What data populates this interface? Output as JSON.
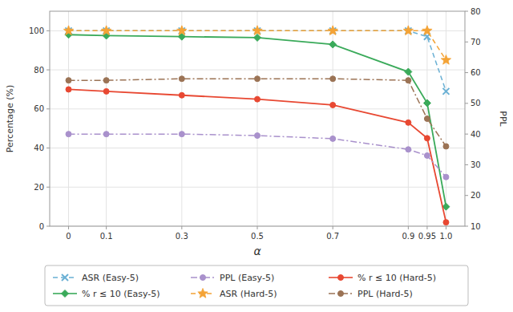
{
  "chart_data": {
    "type": "line",
    "xlabel": "α",
    "ylabel": "Percentage (%)",
    "y2label": "PPL",
    "x": [
      0,
      0.1,
      0.3,
      0.5,
      0.7,
      0.9,
      0.95,
      1.0
    ],
    "xlim": [
      -0.05,
      1.05
    ],
    "xticks": [
      0,
      0.1,
      0.3,
      0.5,
      0.7,
      0.9,
      0.95,
      {
        "value": 1.0,
        "label": "1.0"
      }
    ],
    "ylim": [
      0,
      110
    ],
    "yticks": [
      0,
      20,
      40,
      60,
      80,
      100
    ],
    "y2lim": [
      10,
      80
    ],
    "y2ticks": [
      10,
      20,
      30,
      40,
      50,
      60,
      70,
      80
    ],
    "grid": true,
    "legend": "bottom",
    "series": [
      {
        "name": "ASR (Easy-5)",
        "color": "#6ab0d4",
        "marker": "x",
        "line_style": "dashed",
        "axis": "y",
        "values": [
          100,
          100,
          100,
          100,
          100,
          100,
          97,
          69
        ]
      },
      {
        "name": "% r ≤ 10 (Easy-5)",
        "color": "#3aaa5a",
        "marker": "diamond",
        "line_style": "solid",
        "axis": "y",
        "values": [
          98,
          97.5,
          97,
          96.5,
          93,
          79,
          63,
          10
        ]
      },
      {
        "name": "PPL (Easy-5)",
        "color": "#a991cc",
        "marker": "circle",
        "line_style": "dashdot",
        "axis": "y2",
        "values": [
          40,
          40,
          40,
          39.5,
          38.5,
          35,
          33,
          26
        ]
      },
      {
        "name": "ASR (Hard-5)",
        "color": "#f4a336",
        "marker": "star",
        "line_style": "dashed",
        "axis": "y",
        "values": [
          100,
          100,
          100,
          100,
          100,
          100,
          100,
          85
        ]
      },
      {
        "name": "% r ≤ 10 (Hard-5)",
        "color": "#e84832",
        "marker": "circle",
        "line_style": "solid",
        "axis": "y",
        "values": [
          70,
          69,
          67,
          65,
          62,
          53,
          45,
          2
        ]
      },
      {
        "name": "PPL (Hard-5)",
        "color": "#9b7355",
        "marker": "circle",
        "line_style": "dashdot",
        "axis": "y2",
        "values": [
          57.5,
          57.5,
          58,
          58,
          58,
          57.5,
          45,
          36
        ]
      }
    ]
  }
}
